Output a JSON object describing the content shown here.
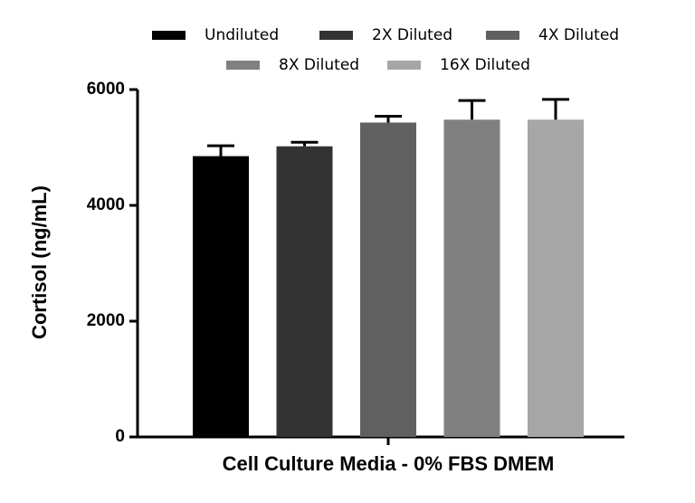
{
  "chart_data": {
    "type": "bar",
    "categories": [
      "Cell Culture Media - 0% FBS DMEM"
    ],
    "ylabel": "Cortisol (ng/mL)",
    "ylim": [
      0,
      6000
    ],
    "yticks": [
      0,
      2000,
      4000,
      6000
    ],
    "series": [
      {
        "name": "Undiluted",
        "color": "#000000",
        "values": [
          4850
        ],
        "errors": [
          180
        ]
      },
      {
        "name": "2X Diluted",
        "color": "#333333",
        "values": [
          5020
        ],
        "errors": [
          70
        ]
      },
      {
        "name": "4X Diluted",
        "color": "#606060",
        "values": [
          5430
        ],
        "errors": [
          110
        ]
      },
      {
        "name": "8X Diluted",
        "color": "#808080",
        "values": [
          5480
        ],
        "errors": [
          330
        ]
      },
      {
        "name": "16X Diluted",
        "color": "#a6a6a6",
        "values": [
          5480
        ],
        "errors": [
          350
        ]
      }
    ]
  }
}
